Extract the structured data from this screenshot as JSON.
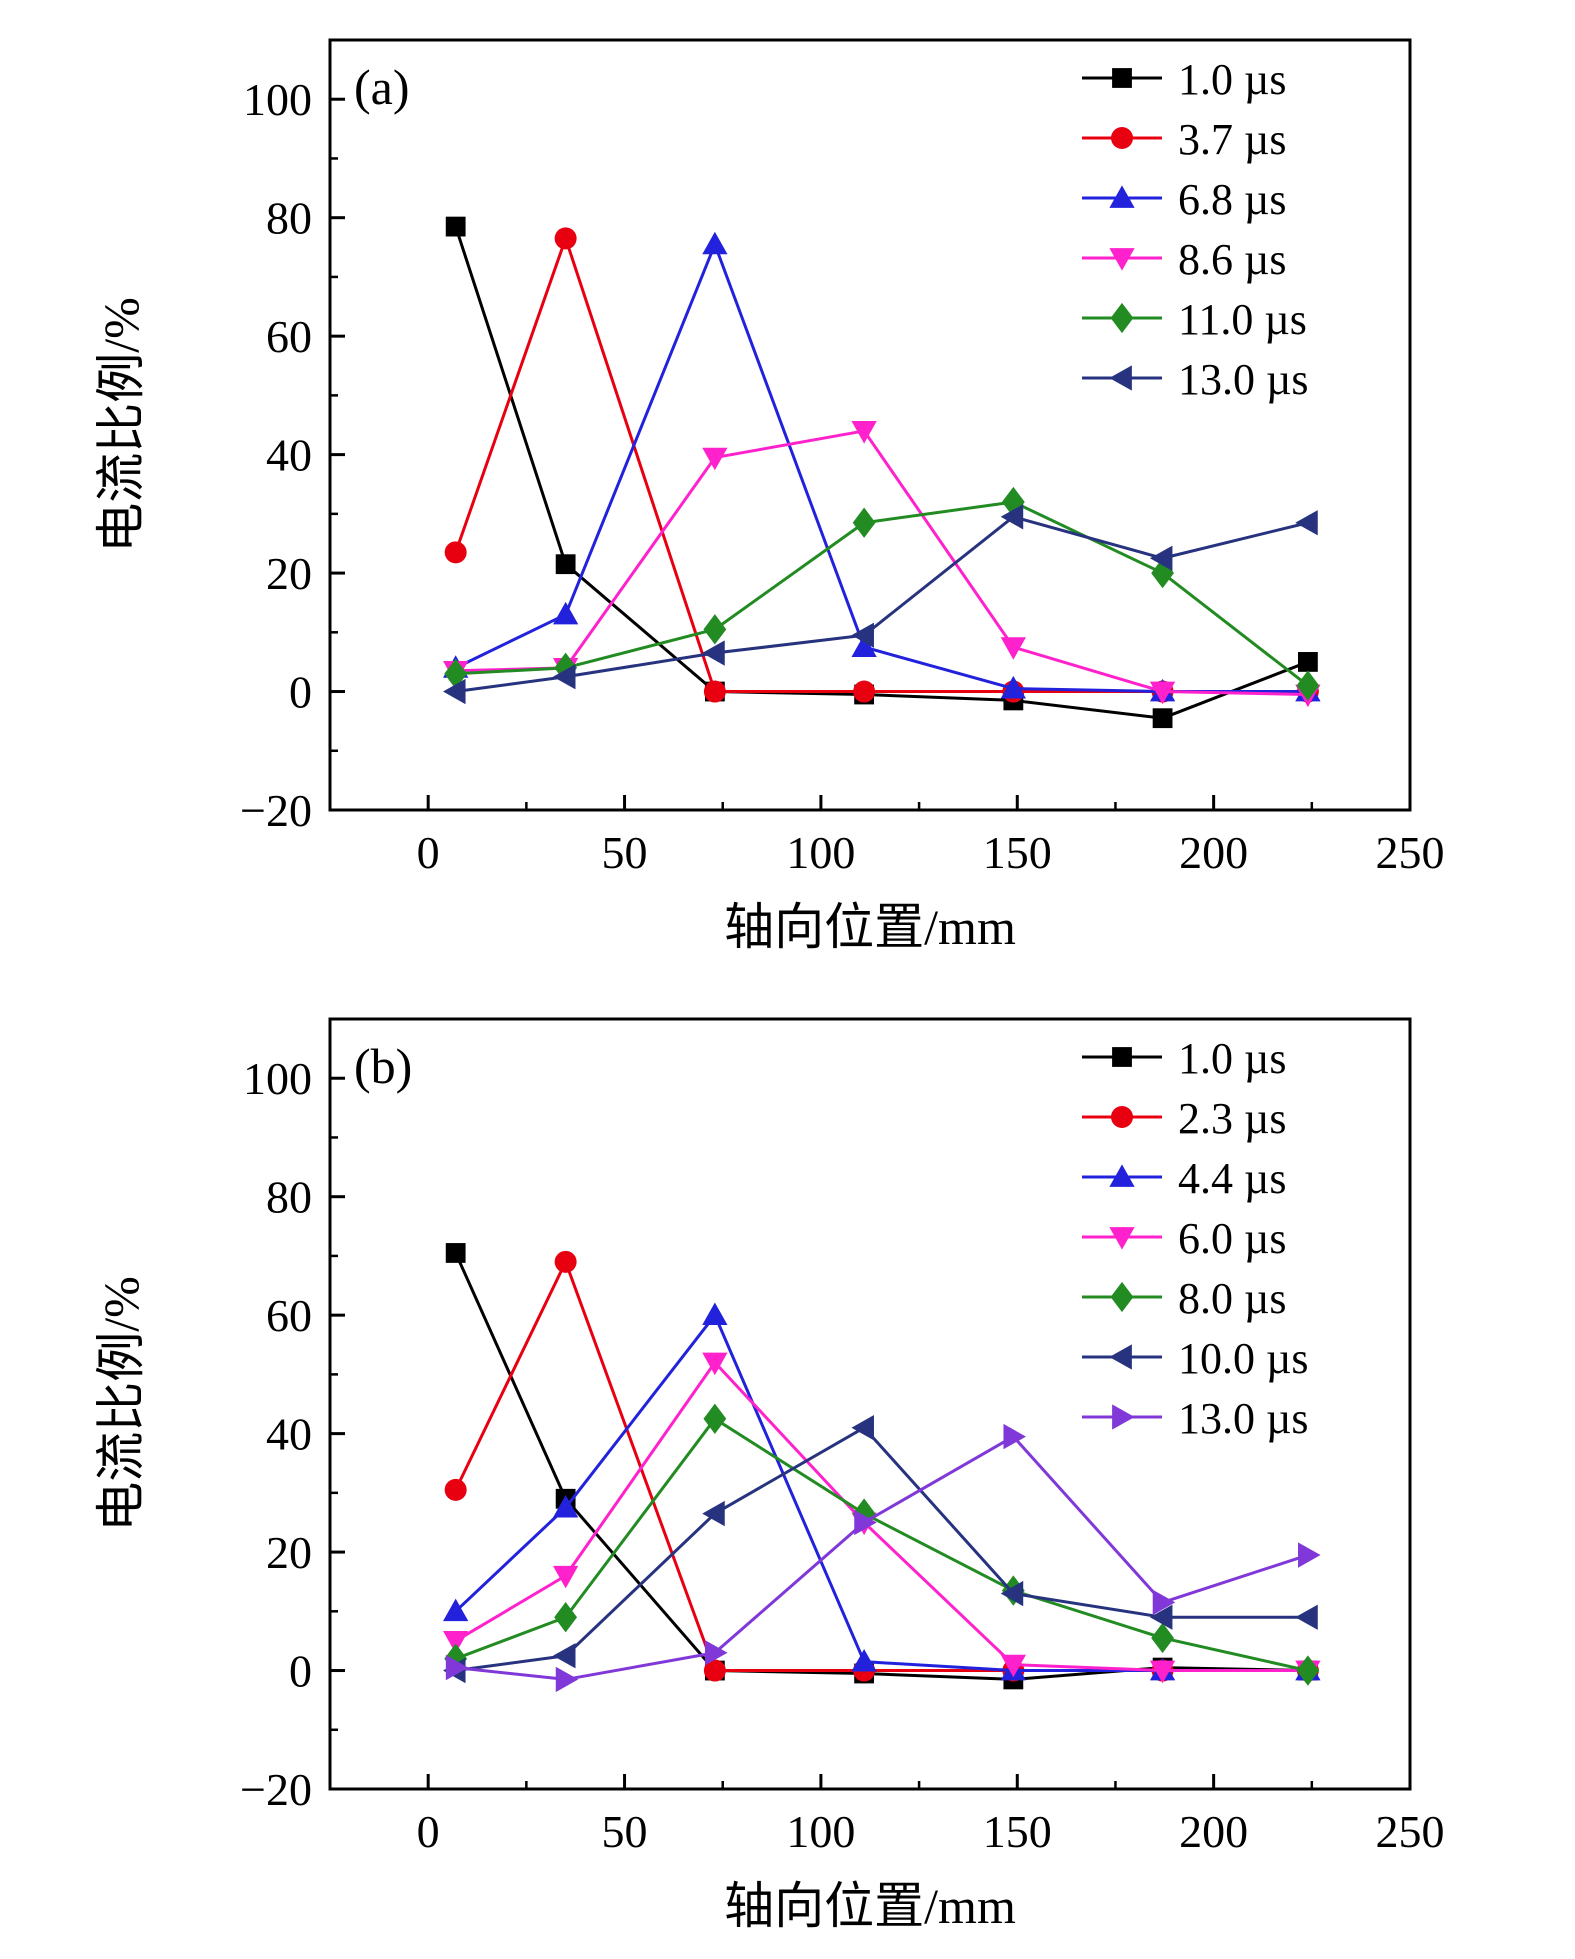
{
  "figure": {
    "background": "#ffffff",
    "axis_color": "#000000"
  },
  "chart_data": [
    {
      "type": "line",
      "panel_label": "(a)",
      "xlabel": "轴向位置/mm",
      "ylabel": "电流比例/%",
      "xlim": [
        -25,
        250
      ],
      "ylim": [
        -20,
        110
      ],
      "xticks": [
        0,
        50,
        100,
        150,
        200,
        250
      ],
      "yticks": [
        -20,
        0,
        20,
        40,
        60,
        80,
        100
      ],
      "xminor": [
        25,
        75,
        125,
        175,
        225
      ],
      "yminor": [
        -10,
        10,
        30,
        50,
        70,
        90
      ],
      "grid": false,
      "legend_position": "top-right",
      "x": [
        7,
        35,
        73,
        111,
        149,
        187,
        224
      ],
      "series": [
        {
          "name": "1.0 µs",
          "color": "#000000",
          "marker": "square",
          "values": [
            78.5,
            21.5,
            0,
            -0.5,
            -1.5,
            -4.5,
            5
          ]
        },
        {
          "name": "3.7 µs",
          "color": "#e80011",
          "marker": "circle",
          "values": [
            23.5,
            76.5,
            0,
            0,
            0,
            0,
            0
          ]
        },
        {
          "name": "6.8 µs",
          "color": "#2222dd",
          "marker": "triangle-up",
          "values": [
            4,
            13,
            75.5,
            7.5,
            0.5,
            0,
            0
          ]
        },
        {
          "name": "8.6 µs",
          "color": "#ff22cc",
          "marker": "triangle-down",
          "values": [
            3.5,
            4,
            39.5,
            44,
            7.5,
            0,
            -0.5
          ]
        },
        {
          "name": "11.0 µs",
          "color": "#228b22",
          "marker": "diamond",
          "values": [
            3,
            4,
            10.5,
            28.5,
            32,
            20,
            1
          ]
        },
        {
          "name": "13.0 µs",
          "color": "#27337f",
          "marker": "triangle-left",
          "values": [
            0,
            2.5,
            6.5,
            9.5,
            29.5,
            22.5,
            28.5
          ]
        }
      ]
    },
    {
      "type": "line",
      "panel_label": "(b)",
      "xlabel": "轴向位置/mm",
      "ylabel": "电流比例/%",
      "xlim": [
        -25,
        250
      ],
      "ylim": [
        -20,
        110
      ],
      "xticks": [
        0,
        50,
        100,
        150,
        200,
        250
      ],
      "yticks": [
        -20,
        0,
        20,
        40,
        60,
        80,
        100
      ],
      "xminor": [
        25,
        75,
        125,
        175,
        225
      ],
      "yminor": [
        -10,
        10,
        30,
        50,
        70,
        90
      ],
      "grid": false,
      "legend_position": "top-right",
      "x": [
        7,
        35,
        73,
        111,
        149,
        187,
        224
      ],
      "series": [
        {
          "name": "1.0 µs",
          "color": "#000000",
          "marker": "square",
          "values": [
            70.5,
            29,
            0,
            -0.5,
            -1.5,
            0.5,
            0
          ]
        },
        {
          "name": "2.3 µs",
          "color": "#e80011",
          "marker": "circle",
          "values": [
            30.5,
            69,
            0,
            0,
            0,
            0,
            0
          ]
        },
        {
          "name": "4.4 µs",
          "color": "#2222dd",
          "marker": "triangle-up",
          "values": [
            10,
            27.5,
            60,
            1.5,
            0,
            0,
            0
          ]
        },
        {
          "name": "6.0 µs",
          "color": "#ff22cc",
          "marker": "triangle-down",
          "values": [
            5,
            16,
            52,
            25,
            1,
            0,
            0
          ]
        },
        {
          "name": "8.0 µs",
          "color": "#228b22",
          "marker": "diamond",
          "values": [
            2,
            9,
            42.5,
            26.5,
            13.5,
            5.5,
            0
          ]
        },
        {
          "name": "10.0 µs",
          "color": "#27337f",
          "marker": "triangle-left",
          "values": [
            0,
            2.5,
            26.5,
            41,
            13,
            9,
            9
          ]
        },
        {
          "name": "13.0 µs",
          "color": "#8038d8",
          "marker": "triangle-right",
          "values": [
            0.5,
            -1.5,
            3,
            25,
            39.5,
            11.5,
            19.5
          ]
        }
      ]
    }
  ]
}
